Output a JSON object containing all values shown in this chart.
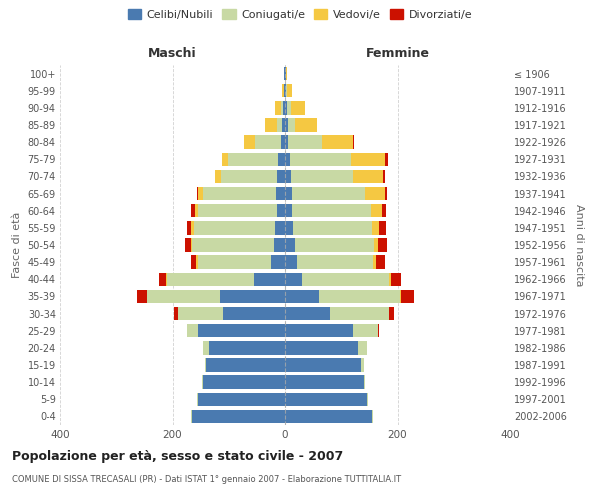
{
  "age_groups": [
    "0-4",
    "5-9",
    "10-14",
    "15-19",
    "20-24",
    "25-29",
    "30-34",
    "35-39",
    "40-44",
    "45-49",
    "50-54",
    "55-59",
    "60-64",
    "65-69",
    "70-74",
    "75-79",
    "80-84",
    "85-89",
    "90-94",
    "95-99",
    "100+"
  ],
  "birth_years": [
    "2002-2006",
    "1997-2001",
    "1992-1996",
    "1987-1991",
    "1982-1986",
    "1977-1981",
    "1972-1976",
    "1967-1971",
    "1962-1966",
    "1957-1961",
    "1952-1956",
    "1947-1951",
    "1942-1946",
    "1937-1941",
    "1932-1936",
    "1927-1931",
    "1922-1926",
    "1917-1921",
    "1912-1916",
    "1907-1911",
    "≤ 1906"
  ],
  "colors": {
    "celibi": "#4a7ab0",
    "coniugati": "#c8d9a4",
    "vedovi": "#f5c842",
    "divorziati": "#cc1100"
  },
  "maschi": {
    "celibi": [
      165,
      155,
      145,
      140,
      135,
      155,
      110,
      115,
      55,
      25,
      20,
      17,
      15,
      16,
      14,
      12,
      8,
      5,
      3,
      2,
      2
    ],
    "coniugati": [
      2,
      2,
      2,
      2,
      10,
      20,
      80,
      130,
      155,
      130,
      145,
      145,
      140,
      130,
      100,
      90,
      45,
      10,
      5,
      0,
      0
    ],
    "vedovi": [
      0,
      0,
      0,
      0,
      0,
      0,
      0,
      0,
      2,
      3,
      3,
      5,
      5,
      8,
      10,
      10,
      20,
      20,
      10,
      3,
      0
    ],
    "divorziati": [
      0,
      0,
      0,
      0,
      0,
      0,
      8,
      18,
      12,
      10,
      10,
      8,
      8,
      2,
      0,
      0,
      0,
      0,
      0,
      0,
      0
    ]
  },
  "femmine": {
    "celibi": [
      155,
      145,
      140,
      135,
      130,
      120,
      80,
      60,
      30,
      22,
      18,
      15,
      12,
      12,
      10,
      8,
      5,
      5,
      3,
      2,
      2
    ],
    "coniugati": [
      2,
      2,
      2,
      5,
      15,
      45,
      105,
      145,
      155,
      135,
      140,
      140,
      140,
      130,
      110,
      110,
      60,
      12,
      8,
      2,
      0
    ],
    "vedovi": [
      0,
      0,
      0,
      0,
      0,
      0,
      0,
      2,
      3,
      5,
      8,
      12,
      20,
      35,
      55,
      60,
      55,
      40,
      25,
      8,
      2
    ],
    "divorziati": [
      0,
      0,
      0,
      0,
      0,
      2,
      8,
      22,
      18,
      15,
      15,
      12,
      8,
      5,
      3,
      5,
      2,
      0,
      0,
      0,
      0
    ]
  },
  "title": "Popolazione per età, sesso e stato civile - 2007",
  "subtitle": "COMUNE DI SISSA TRECASALI (PR) - Dati ISTAT 1° gennaio 2007 - Elaborazione TUTTITALIA.IT",
  "ylabel_left": "Fasce di età",
  "ylabel_right": "Anni di nascita",
  "xlabel_left": "Maschi",
  "xlabel_right": "Femmine",
  "xlim": 400,
  "background_color": "#ffffff",
  "grid_color": "#cccccc",
  "legend_labels": [
    "Celibi/Nubili",
    "Coniugati/e",
    "Vedovi/e",
    "Divorziati/e"
  ]
}
